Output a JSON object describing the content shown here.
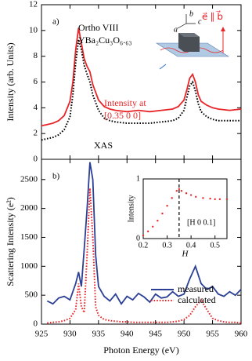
{
  "chart_data": [
    {
      "type": "line",
      "annotation_panel": "a)",
      "annotation_sample": "Ortho VIII",
      "annotation_formula": "YBa₂Cu₃O₆.₆₃",
      "diagram_labels": [
        "a",
        "b",
        "c"
      ],
      "diagram_polarization": "e⃗ ∥ b⃗",
      "ylabel": "Intensity (arb. Units)",
      "ylim": [
        0,
        12
      ],
      "yticks": [
        0,
        2,
        4,
        6,
        8,
        10,
        12
      ],
      "x": [
        925,
        926,
        927,
        928,
        929,
        930,
        930.5,
        931,
        931.5,
        932,
        932.5,
        933,
        933.5,
        934,
        935,
        936,
        937,
        938,
        940,
        942,
        944,
        946,
        948,
        949,
        950,
        950.5,
        951,
        951.5,
        952,
        952.5,
        953,
        954,
        955,
        956,
        958,
        960
      ],
      "series": [
        {
          "label_lines": [
            "Intensity at",
            "[0.35 0 0]"
          ],
          "color": "#e8262a",
          "dash": "solid",
          "values": [
            2.6,
            2.7,
            2.8,
            3.0,
            3.4,
            4.5,
            6.0,
            8.5,
            10.2,
            9.0,
            7.8,
            7.2,
            6.8,
            5.8,
            4.6,
            4.1,
            3.9,
            3.8,
            3.7,
            3.8,
            3.7,
            3.8,
            3.9,
            4.1,
            4.6,
            5.4,
            6.3,
            6.6,
            6.0,
            5.0,
            4.5,
            4.2,
            4.0,
            3.9,
            3.8,
            3.9
          ]
        },
        {
          "name": "XAS",
          "color": "#000000",
          "dash": "dotted",
          "values": [
            1.5,
            1.6,
            1.7,
            1.9,
            2.3,
            3.3,
            5.0,
            7.5,
            9.3,
            8.5,
            7.3,
            6.6,
            6.0,
            5.0,
            3.8,
            3.2,
            3.0,
            2.9,
            2.8,
            2.8,
            2.8,
            2.9,
            3.0,
            3.2,
            3.8,
            4.8,
            5.7,
            6.0,
            5.3,
            4.3,
            3.7,
            3.3,
            3.1,
            3.0,
            3.0,
            3.0
          ]
        }
      ]
    },
    {
      "type": "line",
      "annotation_panel": "b)",
      "ylabel": "Scattering Intensity (e²)",
      "xlabel": "Photon Energy (eV)",
      "xlim": [
        925,
        960
      ],
      "xticks": [
        925,
        930,
        935,
        940,
        945,
        950,
        955,
        960
      ],
      "ylim": [
        0,
        2850
      ],
      "yticks": [
        0,
        500,
        1000,
        1500,
        2000,
        2500
      ],
      "x": [
        926,
        927,
        928,
        929,
        930,
        931,
        931.5,
        932,
        932.5,
        933,
        933.5,
        934,
        934.5,
        935,
        936,
        937,
        938,
        939,
        940,
        941,
        942,
        943,
        944,
        945,
        946,
        947,
        948,
        949,
        950,
        951,
        952,
        953,
        954,
        955,
        956,
        957,
        958,
        959,
        960
      ],
      "series": [
        {
          "name": "measured",
          "color": "#2b3f94",
          "dash": "solid",
          "values": [
            400,
            350,
            450,
            480,
            420,
            700,
            900,
            650,
            1300,
            2000,
            2800,
            2500,
            1200,
            650,
            480,
            400,
            520,
            350,
            480,
            420,
            530,
            470,
            380,
            520,
            450,
            470,
            560,
            480,
            520,
            780,
            1000,
            700,
            600,
            650,
            520,
            480,
            560,
            500,
            600
          ]
        },
        {
          "name": "calculated",
          "color": "#e8262a",
          "dash": "dotted",
          "values": [
            20,
            30,
            40,
            60,
            100,
            250,
            700,
            300,
            200,
            1200,
            2350,
            1500,
            300,
            150,
            80,
            60,
            50,
            40,
            40,
            30,
            30,
            30,
            30,
            30,
            30,
            30,
            40,
            50,
            80,
            150,
            300,
            420,
            250,
            100,
            60,
            40,
            30,
            30,
            20
          ]
        }
      ]
    },
    {
      "type": "scatter",
      "xlabel": "H",
      "ylabel": "Intensity",
      "annotation": "[H 0 0.1]",
      "xlim": [
        0.2,
        0.55
      ],
      "xticks": [
        0.2,
        0.3,
        0.4,
        0.5
      ],
      "ylim": [
        0,
        1
      ],
      "yticks": [
        0,
        1
      ],
      "vline": 0.35,
      "color": "#e8262a",
      "x": [
        0.2,
        0.22,
        0.24,
        0.26,
        0.28,
        0.3,
        0.32,
        0.34,
        0.35,
        0.36,
        0.38,
        0.4,
        0.42,
        0.45,
        0.48,
        0.5,
        0.52,
        0.55
      ],
      "values": [
        0.05,
        0.12,
        0.2,
        0.3,
        0.42,
        0.55,
        0.68,
        0.8,
        0.83,
        0.8,
        0.76,
        0.73,
        0.7,
        0.68,
        0.67,
        0.66,
        0.66,
        0.66
      ]
    }
  ]
}
